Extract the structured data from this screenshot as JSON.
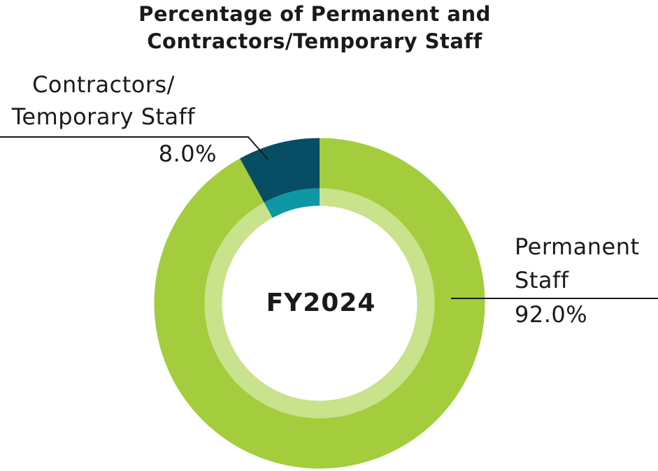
{
  "title": {
    "line1": "Percentage of Permanent and",
    "line2": "Contractors/Temporary Staff"
  },
  "center_label": "FY2024",
  "callouts": {
    "contractors": {
      "line1": "Contractors/",
      "line2": "Temporary Staff",
      "value": "8.0%"
    },
    "permanent": {
      "line1": "Permanent",
      "line2": "Staff",
      "value": "92.0%"
    }
  },
  "chart_data": {
    "type": "pie",
    "variant": "donut-double-ring",
    "title": "Percentage of Permanent and Contractors/Temporary Staff",
    "center_label": "FY2024",
    "categories": [
      "Permanent Staff",
      "Contractors/Temporary Staff"
    ],
    "values": [
      92.0,
      8.0
    ],
    "unit": "%",
    "series": [
      {
        "name": "Permanent Staff",
        "value": 92.0,
        "label": "92.0%",
        "outer_color": "#A3CD3C",
        "inner_color": "#C9E28C"
      },
      {
        "name": "Contractors/Temporary Staff",
        "value": 8.0,
        "label": "8.0%",
        "outer_color": "#074E64",
        "inner_color": "#0E97A5"
      }
    ],
    "start_angle_deg": 0,
    "direction": "clockwise",
    "legend_position": "callouts",
    "line_color": "#1a1a1a"
  }
}
